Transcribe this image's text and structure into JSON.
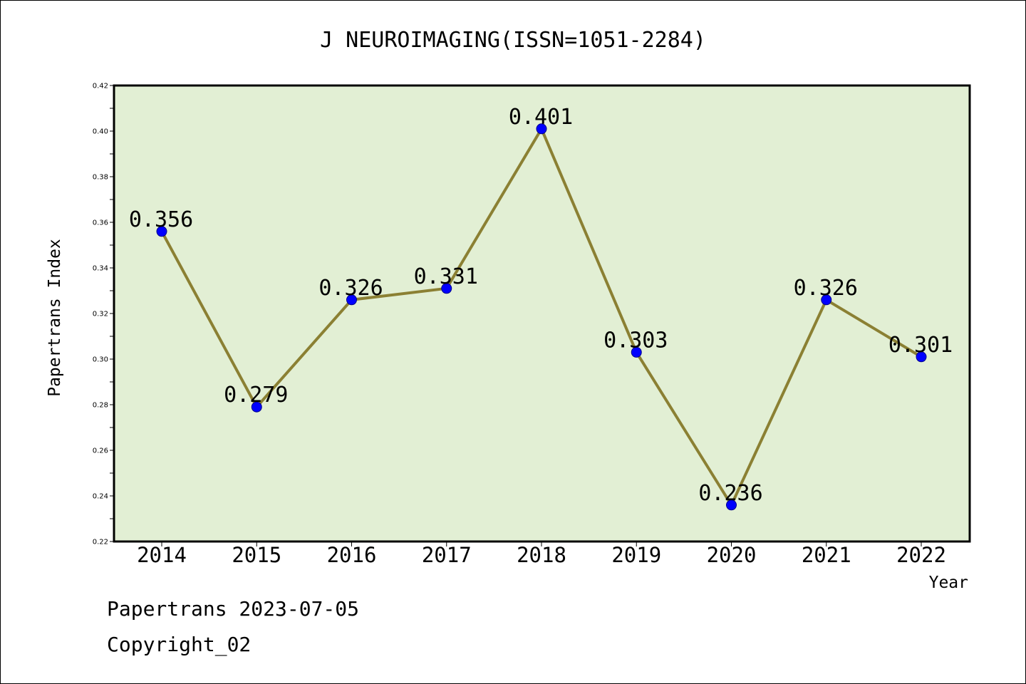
{
  "chart_data": {
    "type": "line",
    "title": "J NEUROIMAGING(ISSN=1051-2284)",
    "xlabel": "Year",
    "ylabel": "Papertrans Index",
    "categories": [
      "2014",
      "2015",
      "2016",
      "2017",
      "2018",
      "2019",
      "2020",
      "2021",
      "2022"
    ],
    "series": [
      {
        "values": [
          0.356,
          0.279,
          0.326,
          0.331,
          0.401,
          0.303,
          0.236,
          0.326,
          0.301
        ],
        "labels": [
          "0.356",
          "0.279",
          "0.326",
          "0.331",
          "0.401",
          "0.303",
          "0.236",
          "0.326",
          "0.301"
        ]
      }
    ],
    "ylim": [
      0.22,
      0.42
    ],
    "yticks": [
      "0.22",
      "0.24",
      "0.26",
      "0.28",
      "0.30",
      "0.32",
      "0.34",
      "0.36",
      "0.38",
      "0.40",
      "0.42"
    ],
    "grid": false,
    "colors": {
      "plot_background": "#e2efd4",
      "line": "#8b8033",
      "marker": "#0000ff",
      "marker_edge": "#00008b"
    }
  },
  "footer": {
    "line1": "Papertrans 2023-07-05",
    "line2": "Copyright_02"
  }
}
